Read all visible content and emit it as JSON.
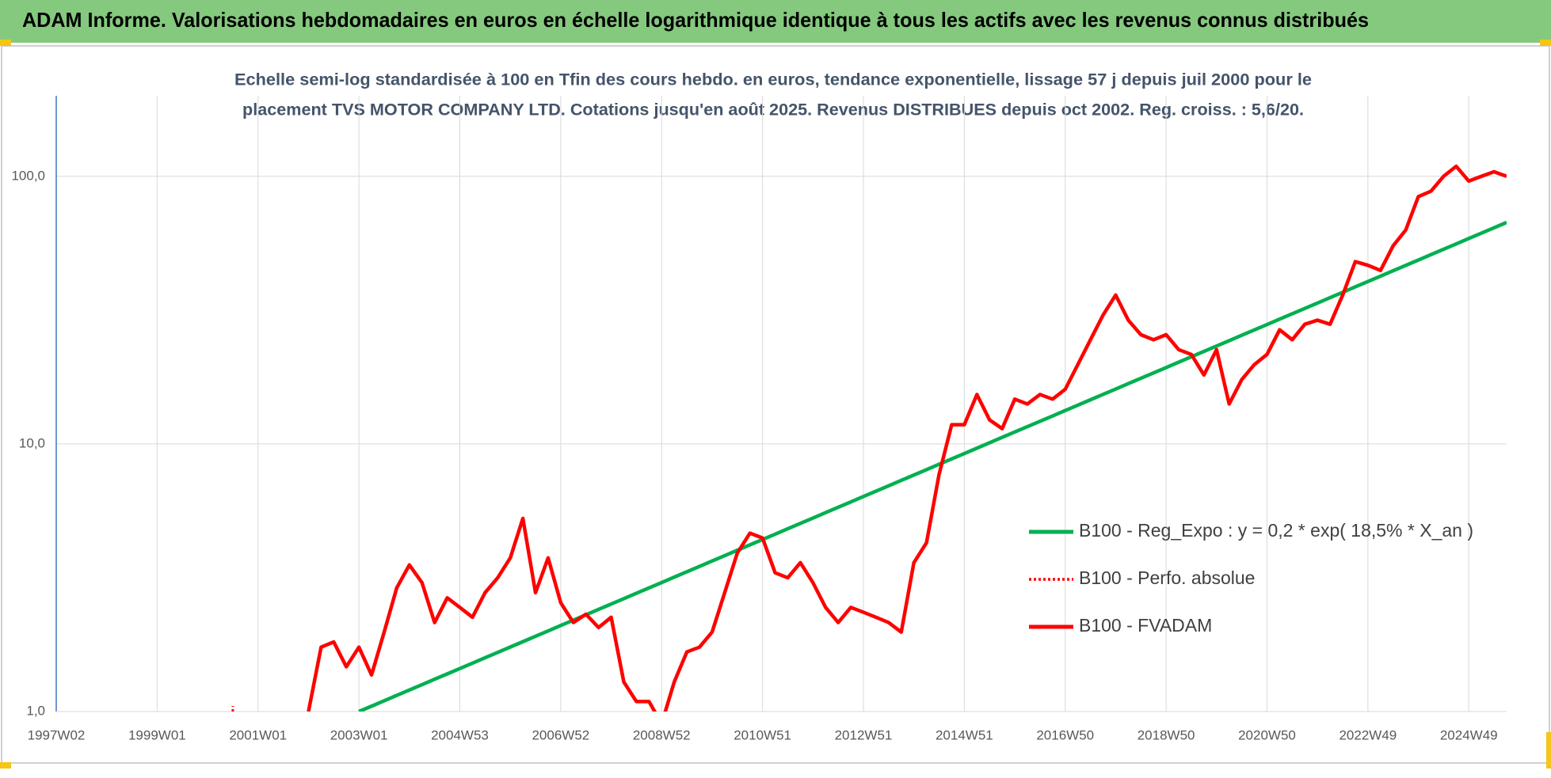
{
  "chart_data": {
    "type": "line",
    "title": "ADAM Informe. Valorisations hebdomadaires en euros en échelle logarithmique identique à tous les actifs avec les revenus connus distribués",
    "subtitle": [
      "Echelle semi-log standardisée à 100 en Tfin des cours hebdo. en euros, tendance exponentielle, lissage 57 j depuis juil 2000 pour le",
      "placement TVS MOTOR COMPANY LTD. Cotations jusqu'en août 2025. Revenus DISTRIBUES depuis oct 2002. Reg. croiss. : 5,6/20."
    ],
    "log_scale": true,
    "grid": true,
    "legend": "right",
    "ylim": [
      1,
      200
    ],
    "yticks": [
      {
        "value": 1,
        "label": "1,0"
      },
      {
        "value": 10,
        "label": "10,0"
      },
      {
        "value": 100,
        "label": "100,0"
      }
    ],
    "categories": [
      "1997W02",
      null,
      null,
      null,
      null,
      null,
      null,
      null,
      "1999W01",
      null,
      null,
      null,
      null,
      null,
      null,
      null,
      "2001W01",
      null,
      null,
      null,
      null,
      null,
      null,
      null,
      "2003W01",
      null,
      null,
      null,
      null,
      null,
      null,
      null,
      "2004W53",
      null,
      null,
      null,
      null,
      null,
      null,
      null,
      "2006W52",
      null,
      null,
      null,
      null,
      null,
      null,
      null,
      "2008W52",
      null,
      null,
      null,
      null,
      null,
      null,
      null,
      "2010W51",
      null,
      null,
      null,
      null,
      null,
      null,
      null,
      "2012W51",
      null,
      null,
      null,
      null,
      null,
      null,
      null,
      "2014W51",
      null,
      null,
      null,
      null,
      null,
      null,
      null,
      "2016W50",
      null,
      null,
      null,
      null,
      null,
      null,
      null,
      "2018W50",
      null,
      null,
      null,
      null,
      null,
      null,
      null,
      "2020W50",
      null,
      null,
      null,
      null,
      null,
      null,
      null,
      "2022W49",
      null,
      null,
      null,
      null,
      null,
      null,
      null,
      "2024W49",
      null,
      null,
      null
    ],
    "series": [
      {
        "name": "B100 - Reg_Expo : y = 0,2 * exp( 18,5% *  X_an )",
        "color": "#00b050",
        "style": "solid",
        "values": [
          null,
          null,
          null,
          null,
          null,
          null,
          null,
          null,
          null,
          null,
          null,
          null,
          null,
          null,
          null,
          null,
          null,
          null,
          null,
          null,
          null,
          null,
          null,
          null,
          1.0,
          1.047,
          1.097,
          1.149,
          1.203,
          1.26,
          1.32,
          1.382,
          1.448,
          1.516,
          1.588,
          1.663,
          1.742,
          1.824,
          1.911,
          2.001,
          2.096,
          2.195,
          2.299,
          2.408,
          2.522,
          2.641,
          2.766,
          2.897,
          3.034,
          3.178,
          3.328,
          3.486,
          3.651,
          3.824,
          4.005,
          4.194,
          4.393,
          4.601,
          4.818,
          5.047,
          5.285,
          5.536,
          5.798,
          6.072,
          6.36,
          6.661,
          6.976,
          7.306,
          7.652,
          8.014,
          8.393,
          8.791,
          9.207,
          9.642,
          10.1,
          10.58,
          11.08,
          11.6,
          12.15,
          12.72,
          13.33,
          13.96,
          14.62,
          15.31,
          16.04,
          16.8,
          17.59,
          18.42,
          19.29,
          20.21,
          21.17,
          22.17,
          23.22,
          24.32,
          25.47,
          26.67,
          27.94,
          29.26,
          30.64,
          32.09,
          33.61,
          35.21,
          36.87,
          38.62,
          40.45,
          42.36,
          44.37,
          46.47,
          48.67,
          50.97,
          53.38,
          55.91,
          58.56,
          61.33,
          64.23,
          67.27
        ]
      },
      {
        "name": "B100 - Perfo. absolue",
        "color": "#ff0000",
        "style": "dotted",
        "values": [
          null,
          null,
          null,
          null,
          null,
          null,
          null,
          null,
          null,
          null,
          null,
          null,
          null,
          null,
          1.0,
          null,
          null,
          null,
          null,
          null,
          null,
          null,
          null,
          null,
          null,
          null,
          null,
          null,
          null,
          null,
          null,
          null,
          null,
          null,
          null,
          null,
          null,
          null,
          null,
          null,
          null,
          null,
          null,
          null,
          null,
          null,
          null,
          null,
          null,
          null,
          null,
          null,
          null,
          null,
          null,
          null,
          null,
          null,
          null,
          null,
          null,
          null,
          null,
          null,
          null,
          null,
          null,
          null,
          null,
          null,
          null,
          null,
          null,
          null,
          null,
          null,
          null,
          null,
          null,
          null,
          null,
          null,
          null,
          null,
          null,
          null,
          null,
          null,
          null,
          null,
          null,
          null,
          null,
          null,
          null,
          null,
          null,
          null,
          null,
          null,
          null,
          null,
          null,
          null,
          null,
          null,
          null,
          null,
          null,
          null,
          null,
          null,
          null,
          null,
          null,
          null
        ]
      },
      {
        "name": "B100 - FVADAM",
        "color": "#ff0000",
        "style": "solid",
        "values": [
          null,
          null,
          null,
          null,
          null,
          null,
          null,
          null,
          null,
          null,
          null,
          null,
          null,
          null,
          null,
          null,
          null,
          null,
          null,
          null,
          1.0,
          1.74,
          1.82,
          1.47,
          1.74,
          1.37,
          1.98,
          2.9,
          3.53,
          3.03,
          2.15,
          2.66,
          2.45,
          2.25,
          2.78,
          3.16,
          3.75,
          5.27,
          2.78,
          3.75,
          2.55,
          2.15,
          2.31,
          2.06,
          2.25,
          1.29,
          1.09,
          1.09,
          0.9,
          1.29,
          1.67,
          1.74,
          1.98,
          2.78,
          3.91,
          4.64,
          4.45,
          3.3,
          3.16,
          3.6,
          3.03,
          2.45,
          2.15,
          2.45,
          2.35,
          2.25,
          2.15,
          1.98,
          3.6,
          4.27,
          7.7,
          11.8,
          11.8,
          15.3,
          12.3,
          11.4,
          14.7,
          14.1,
          15.3,
          14.7,
          16,
          19.8,
          24.5,
          30.3,
          36,
          29,
          25.6,
          24.5,
          25.6,
          22.5,
          21.6,
          18.1,
          22.5,
          14.1,
          17.4,
          19.8,
          21.6,
          26.7,
          24.5,
          28,
          29,
          28,
          36,
          48,
          46.5,
          44.5,
          55,
          63,
          84,
          88,
          100,
          109,
          96,
          100,
          104,
          100
        ]
      }
    ]
  }
}
